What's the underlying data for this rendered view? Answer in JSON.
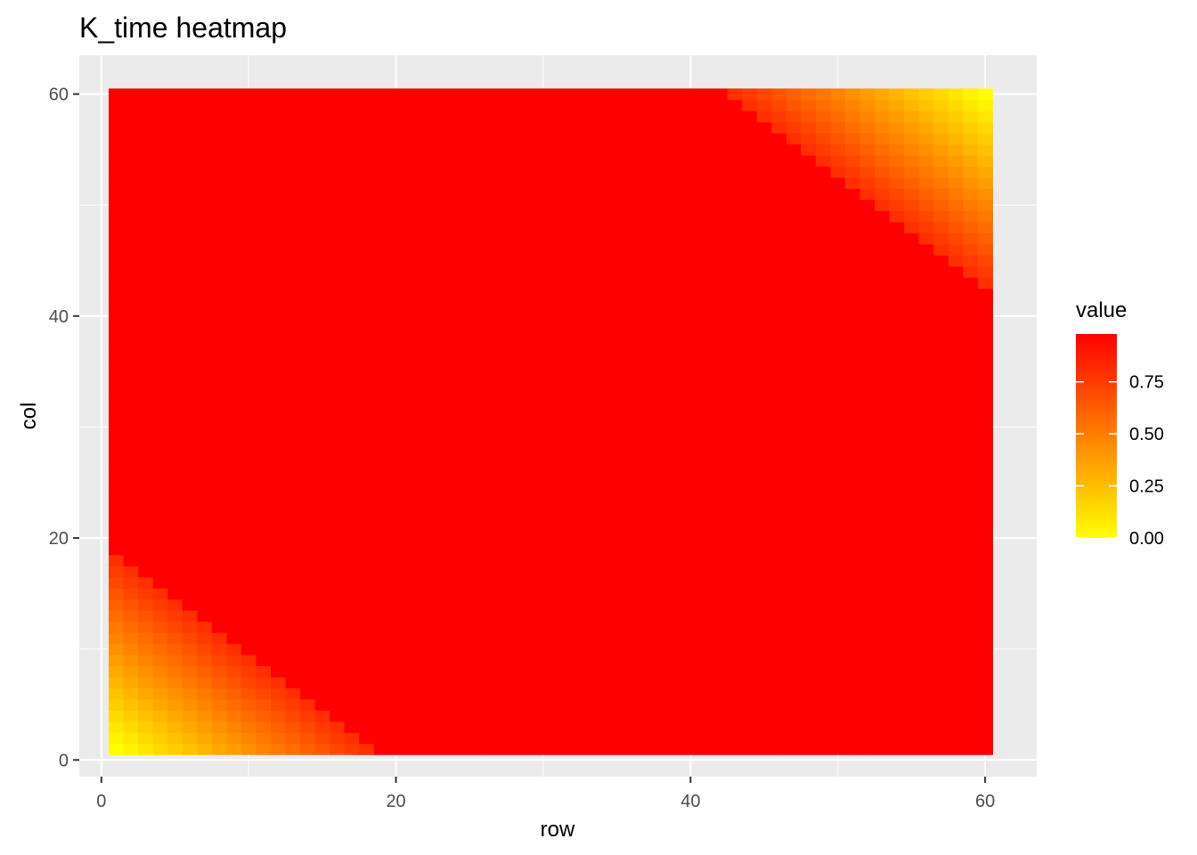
{
  "chart_data": {
    "type": "heatmap",
    "title": "K_time heatmap",
    "xlabel": "row",
    "ylabel": "col",
    "x_range": [
      1,
      60
    ],
    "y_range": [
      1,
      60
    ],
    "xlim": [
      -1.5,
      63.5
    ],
    "ylim": [
      -1.5,
      63.5
    ],
    "x_ticks": [
      0,
      20,
      40,
      60
    ],
    "y_ticks": [
      0,
      20,
      40,
      60
    ],
    "x_tick_labels": [
      "0",
      "20",
      "40",
      "60"
    ],
    "y_tick_labels": [
      "0",
      "20",
      "40",
      "60"
    ],
    "grid": true,
    "colors": {
      "low": "#ffff00",
      "high": "#ff0000",
      "panel_background": "#ebebeb",
      "grid": "#ffffff"
    },
    "legend": {
      "title": "value",
      "position": "right",
      "breaks": [
        0,
        0.25,
        0.5,
        0.75
      ],
      "labels": [
        "0.00",
        "0.25",
        "0.50",
        "0.75"
      ],
      "range": [
        0,
        0.98
      ]
    },
    "regions": {
      "lower_left_corner": {
        "threshold_row_plus_col": 20,
        "value_at_corner": 0.0,
        "value_near_edge": 0.8
      },
      "upper_right_corner": {
        "threshold_row_plus_col": 102,
        "value_at_corner": 0.0,
        "value_near_edge": 0.8
      },
      "fill_value": 0.98
    }
  }
}
